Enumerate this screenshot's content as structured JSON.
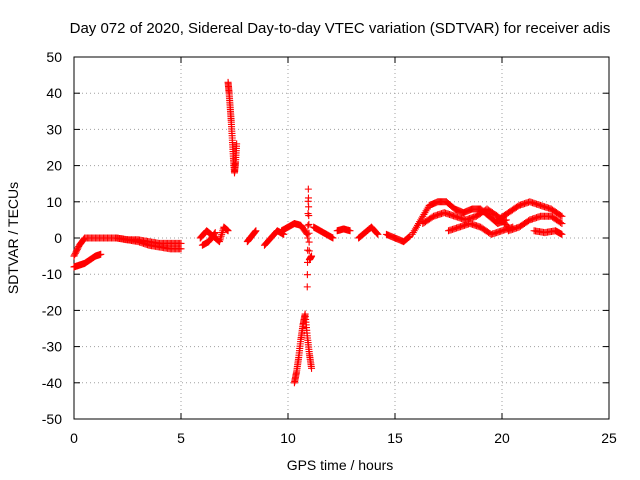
{
  "chart_data": {
    "type": "scatter",
    "title": "Day 072 of 2020, Sidereal Day-to-day VTEC variation (SDTVAR) for receiver adis",
    "xlabel": "GPS time / hours",
    "ylabel": "SDTVAR / TECUs",
    "xlim": [
      0,
      25
    ],
    "ylim": [
      -50,
      50
    ],
    "xticks": [
      0,
      5,
      10,
      15,
      20,
      25
    ],
    "yticks": [
      -50,
      -40,
      -30,
      -20,
      -10,
      0,
      10,
      20,
      30,
      40,
      50
    ],
    "grid": true,
    "marker": "+",
    "marker_color": "#ff0000",
    "segments": [
      {
        "name": "early-arc-a",
        "x": [
          0.0,
          0.25,
          0.5,
          1.0,
          1.5,
          2.0,
          2.5,
          3.0,
          3.5,
          4.0,
          4.5,
          5.0
        ],
        "y": [
          -5.0,
          -2.0,
          0.0,
          0.0,
          0.0,
          0.0,
          -0.5,
          -0.5,
          -1.0,
          -1.5,
          -1.5,
          -1.5
        ]
      },
      {
        "name": "early-arc-b",
        "x": [
          0.0,
          0.25,
          0.5,
          0.75,
          1.0,
          1.25
        ],
        "y": [
          -8.0,
          -7.5,
          -7.0,
          -6.0,
          -5.0,
          -4.5
        ]
      },
      {
        "name": "early-arc-c",
        "x": [
          2.0,
          2.5,
          3.0,
          3.5,
          4.0,
          4.5,
          5.0
        ],
        "y": [
          0.0,
          -0.5,
          -1.0,
          -2.0,
          -2.5,
          -3.0,
          -3.0
        ]
      },
      {
        "name": "mid-arc-a",
        "x": [
          5.9,
          6.2,
          6.5,
          6.8,
          7.0,
          7.2
        ],
        "y": [
          0.0,
          2.0,
          0.5,
          -1.0,
          3.0,
          2.0
        ]
      },
      {
        "name": "mid-arc-b",
        "x": [
          6.0,
          6.3,
          6.6
        ],
        "y": [
          -2.0,
          -1.0,
          1.5
        ]
      },
      {
        "name": "spike-up",
        "x": [
          7.2,
          7.25,
          7.3,
          7.35,
          7.4,
          7.45,
          7.5,
          7.55,
          7.6
        ],
        "y": [
          43.0,
          40.0,
          36.0,
          32.0,
          27.0,
          22.0,
          18.0,
          21.0,
          26.0
        ]
      },
      {
        "name": "mid-arc-c",
        "x": [
          8.1,
          8.3,
          8.5
        ],
        "y": [
          -1.0,
          0.5,
          2.0
        ]
      },
      {
        "name": "mid-arc-d",
        "x": [
          8.9,
          9.2,
          9.5,
          9.8
        ],
        "y": [
          -2.0,
          0.0,
          2.0,
          1.0
        ]
      },
      {
        "name": "mid-arc-e",
        "x": [
          9.7,
          10.0,
          10.3,
          10.6,
          10.9
        ],
        "y": [
          2.0,
          3.0,
          4.0,
          3.5,
          1.0
        ]
      },
      {
        "name": "spike-down",
        "x": [
          10.3,
          10.4,
          10.5,
          10.6,
          10.7,
          10.8,
          10.9,
          11.0,
          11.1
        ],
        "y": [
          -40.0,
          -37.0,
          -33.0,
          -28.0,
          -24.0,
          -21.0,
          -27.0,
          -32.0,
          -36.0
        ]
      },
      {
        "name": "spike-down-scatter",
        "x": [
          10.9,
          10.95,
          11.0,
          11.1
        ],
        "y": [
          -13.5,
          13.5,
          -6.0,
          -5.0
        ]
      },
      {
        "name": "mid-arc-f",
        "x": [
          11.2,
          11.5,
          11.8,
          12.1
        ],
        "y": [
          3.0,
          2.0,
          1.0,
          0.0
        ]
      },
      {
        "name": "mid-arc-g",
        "x": [
          12.3,
          12.6,
          12.9
        ],
        "y": [
          2.0,
          2.5,
          2.0
        ]
      },
      {
        "name": "mid-arc-h",
        "x": [
          13.3,
          13.6,
          13.9,
          14.2
        ],
        "y": [
          0.0,
          1.5,
          3.0,
          1.0
        ]
      },
      {
        "name": "mid-arc-i",
        "x": [
          14.6,
          15.0,
          15.4,
          15.7
        ],
        "y": [
          1.0,
          0.0,
          -1.0,
          0.5
        ]
      },
      {
        "name": "late-arc-a",
        "x": [
          15.8,
          16.2,
          16.6,
          17.0,
          17.4,
          17.8,
          18.2,
          18.6,
          19.0,
          19.4,
          19.8,
          20.2
        ],
        "y": [
          1.0,
          5.0,
          9.0,
          10.0,
          10.0,
          8.0,
          7.0,
          8.0,
          8.0,
          6.0,
          4.0,
          5.0
        ]
      },
      {
        "name": "late-arc-b",
        "x": [
          16.3,
          16.8,
          17.3,
          17.8,
          18.3,
          18.8,
          19.3,
          19.8,
          20.3
        ],
        "y": [
          4.0,
          6.0,
          7.0,
          6.0,
          5.0,
          6.0,
          8.0,
          6.0,
          3.0
        ]
      },
      {
        "name": "late-arc-c",
        "x": [
          17.5,
          18.0,
          18.5,
          19.0,
          19.5,
          20.0,
          20.5
        ],
        "y": [
          2.0,
          3.0,
          4.0,
          3.0,
          1.0,
          2.0,
          3.0
        ]
      },
      {
        "name": "late-arc-d",
        "x": [
          19.8,
          20.3,
          20.8,
          21.3,
          21.8,
          22.3,
          22.8
        ],
        "y": [
          5.0,
          7.0,
          9.0,
          10.0,
          9.0,
          8.0,
          6.0
        ]
      },
      {
        "name": "late-arc-e",
        "x": [
          20.3,
          20.8,
          21.3,
          21.8,
          22.3,
          22.8
        ],
        "y": [
          2.0,
          3.0,
          5.0,
          6.0,
          6.0,
          4.0
        ]
      },
      {
        "name": "late-arc-f",
        "x": [
          21.5,
          22.0,
          22.5,
          22.8
        ],
        "y": [
          2.0,
          1.5,
          2.0,
          1.0
        ]
      }
    ]
  }
}
